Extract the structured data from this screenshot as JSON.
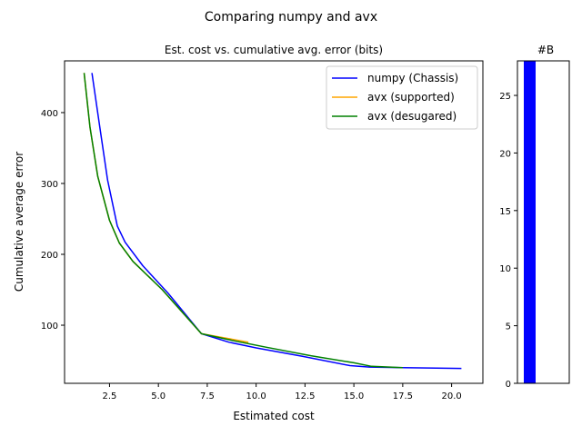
{
  "figure": {
    "suptitle": "Comparing numpy and avx"
  },
  "chart_data": [
    {
      "type": "line",
      "title": "Est. cost vs. cumulative avg. error (bits)",
      "xlabel": "Estimated cost",
      "ylabel": "Cumulative average error",
      "xlim": [
        0.2,
        21.6
      ],
      "ylim": [
        18,
        473
      ],
      "xticks": [
        2.5,
        5.0,
        7.5,
        10.0,
        12.5,
        15.0,
        17.5,
        20.0
      ],
      "xtick_labels": [
        "2.5",
        "5.0",
        "7.5",
        "10.0",
        "12.5",
        "15.0",
        "17.5",
        "20.0"
      ],
      "yticks": [
        100,
        200,
        300,
        400
      ],
      "ytick_labels": [
        "100",
        "200",
        "300",
        "400"
      ],
      "grid": false,
      "legend_position": "top-right",
      "series": [
        {
          "name": "numpy (Chassis)",
          "color": "#0000ff",
          "x": [
            1.6,
            2.0,
            2.4,
            2.9,
            3.3,
            4.2,
            5.5,
            7.2,
            8.6,
            10.0,
            12.4,
            14.8,
            15.8,
            17.5,
            20.5
          ],
          "y": [
            456,
            380,
            305,
            240,
            217,
            184,
            145,
            88,
            76,
            68,
            56,
            43,
            41,
            40,
            39
          ]
        },
        {
          "name": "avx (supported)",
          "color": "#ffa500",
          "x": [
            1.2,
            1.5,
            1.9,
            2.5,
            3.0,
            3.7,
            5.2,
            7.2,
            8.0,
            9.6
          ],
          "y": [
            456,
            380,
            310,
            248,
            216,
            190,
            150,
            88,
            84,
            76
          ]
        },
        {
          "name": "avx (desugared)",
          "color": "#008000",
          "x": [
            1.2,
            1.5,
            1.9,
            2.5,
            3.0,
            3.7,
            5.2,
            7.2,
            8.7,
            10.5,
            12.8,
            15.0,
            15.9,
            17.5
          ],
          "y": [
            456,
            380,
            310,
            248,
            216,
            190,
            150,
            88,
            79,
            69,
            57,
            47,
            42,
            40
          ]
        }
      ]
    },
    {
      "type": "bar",
      "title": "#B",
      "ylim": [
        0,
        28
      ],
      "yticks": [
        0,
        5,
        10,
        15,
        20,
        25
      ],
      "ytick_labels": [
        "0",
        "5",
        "10",
        "15",
        "20",
        "25"
      ],
      "series": [
        {
          "color": "#0000ff",
          "values": [
            28
          ]
        }
      ]
    }
  ]
}
